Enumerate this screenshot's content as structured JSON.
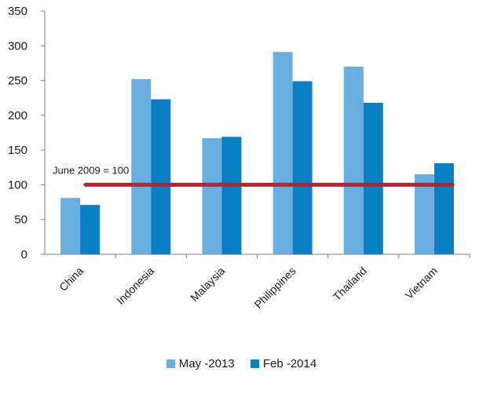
{
  "chart_data": {
    "type": "bar",
    "categories": [
      "China",
      "Indonesia",
      "Malaysia",
      "Philippines",
      "Thailand",
      "Vietnam"
    ],
    "series": [
      {
        "name": "May -2013",
        "color": "#6aaee0",
        "values": [
          81,
          252,
          167,
          291,
          270,
          115
        ]
      },
      {
        "name": "Feb -2014",
        "color": "#0a7fc4",
        "values": [
          71,
          223,
          169,
          249,
          218,
          131
        ]
      }
    ],
    "reference_line": {
      "value": 100,
      "label": "June 2009 = 100",
      "color": "#b22430"
    },
    "yticks": [
      0,
      50,
      100,
      150,
      200,
      250,
      300,
      350
    ],
    "ylim": [
      0,
      350
    ],
    "grid": false,
    "legend_position": "bottom"
  }
}
